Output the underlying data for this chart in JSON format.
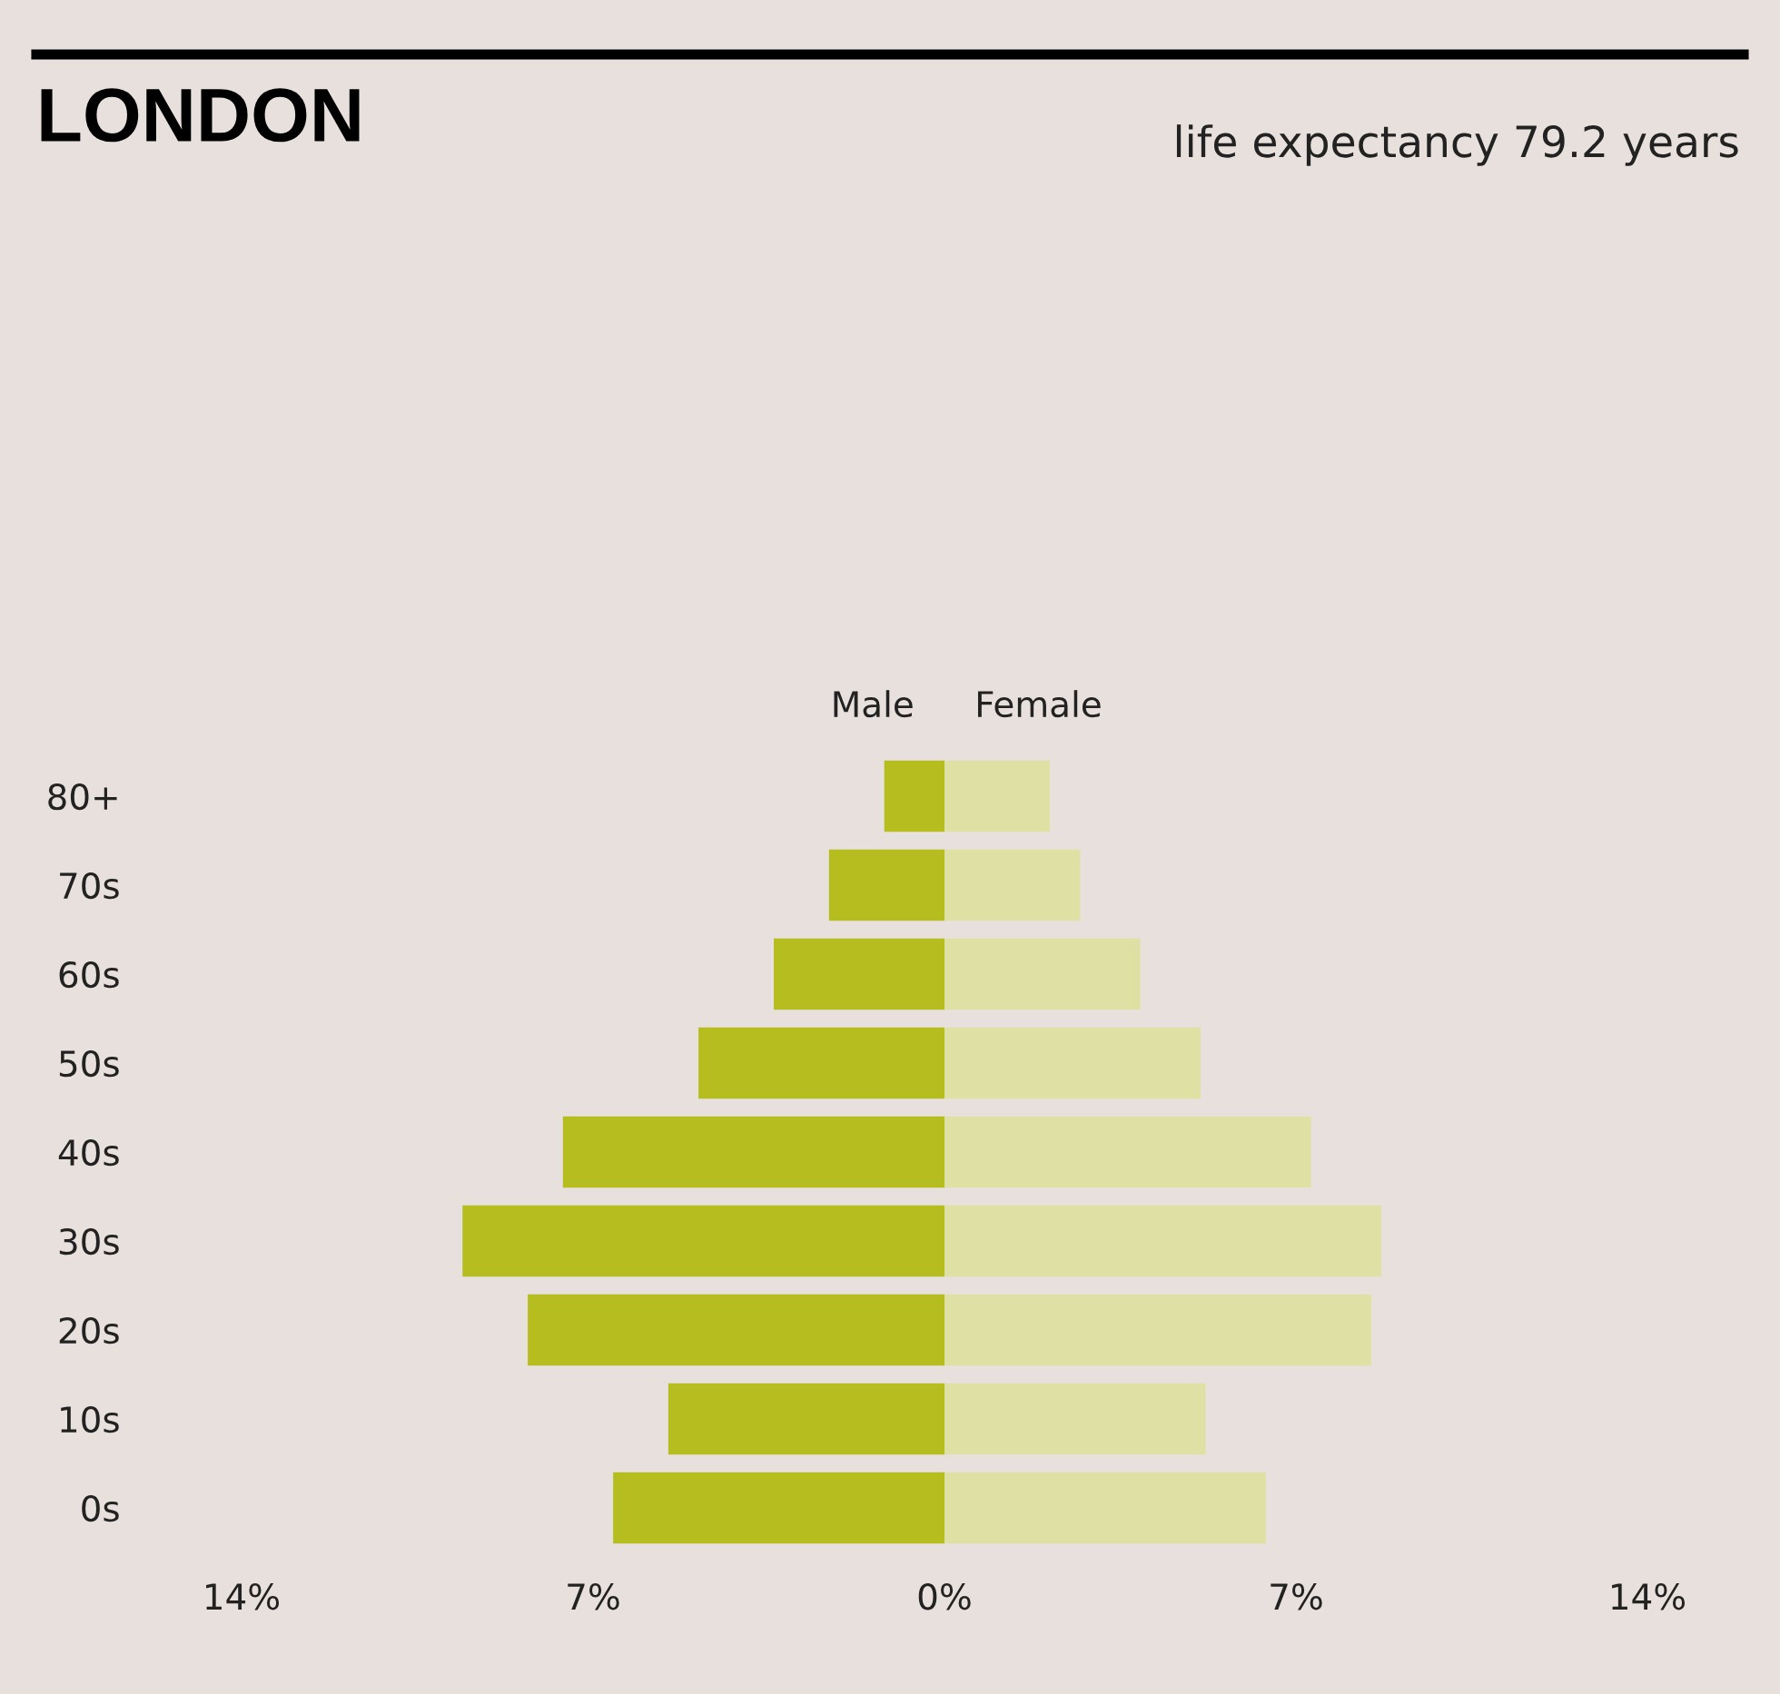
{
  "chart_data": {
    "type": "bar",
    "orientation": "horizontal",
    "title": "LONDON",
    "subtitle": "life expectancy 79.2 years",
    "categories": [
      "80+",
      "70s",
      "60s",
      "50s",
      "40s",
      "30s",
      "20s",
      "10s",
      "0s"
    ],
    "series": [
      {
        "name": "Male",
        "color": "#b5be1e",
        "values": [
          -1.2,
          -2.3,
          -3.4,
          -4.9,
          -7.6,
          -9.6,
          -8.3,
          -5.5,
          -6.6
        ]
      },
      {
        "name": "Female",
        "color": "#dfe0a4",
        "values": [
          2.1,
          2.7,
          3.9,
          5.1,
          7.3,
          8.7,
          8.5,
          5.2,
          6.4
        ]
      }
    ],
    "stacked": true,
    "xlim": [
      -14,
      14
    ],
    "xticks": [
      {
        "value": -14,
        "label": "14%"
      },
      {
        "value": -7,
        "label": "7%"
      },
      {
        "value": 0,
        "label": "0%"
      },
      {
        "value": 7,
        "label": "7%"
      },
      {
        "value": 14,
        "label": "14%"
      }
    ],
    "grid": false,
    "legend": false
  }
}
